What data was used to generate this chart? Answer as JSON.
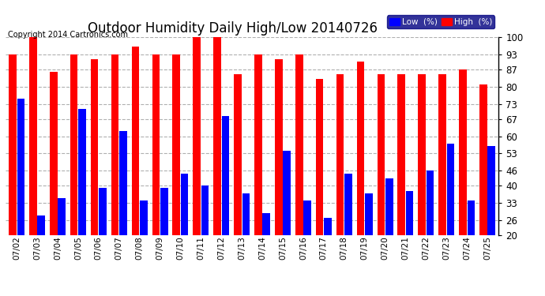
{
  "title": "Outdoor Humidity Daily High/Low 20140726",
  "copyright": "Copyright 2014 Cartronics.com",
  "dates": [
    "07/02",
    "07/03",
    "07/04",
    "07/05",
    "07/06",
    "07/07",
    "07/08",
    "07/09",
    "07/10",
    "07/11",
    "07/12",
    "07/13",
    "07/14",
    "07/15",
    "07/16",
    "07/17",
    "07/18",
    "07/19",
    "07/20",
    "07/21",
    "07/22",
    "07/23",
    "07/24",
    "07/25"
  ],
  "high": [
    93,
    100,
    86,
    93,
    91,
    93,
    96,
    93,
    93,
    100,
    100,
    85,
    93,
    91,
    93,
    83,
    85,
    90,
    85,
    85,
    85,
    85,
    87,
    81
  ],
  "low": [
    75,
    28,
    35,
    71,
    39,
    62,
    34,
    39,
    45,
    40,
    68,
    37,
    29,
    54,
    34,
    27,
    45,
    37,
    43,
    38,
    46,
    57,
    34,
    56
  ],
  "ybase": 20,
  "ylim": [
    20,
    100
  ],
  "yticks": [
    20,
    26,
    33,
    40,
    46,
    53,
    60,
    67,
    73,
    80,
    87,
    93,
    100
  ],
  "bg_color": "#ffffff",
  "bar_color_high": "#ff0000",
  "bar_color_low": "#0000ff",
  "grid_color": "#b0b0b0",
  "title_fontsize": 12,
  "copyright_fontsize": 7,
  "legend_low_label": "Low  (%)",
  "legend_high_label": "High  (%)"
}
